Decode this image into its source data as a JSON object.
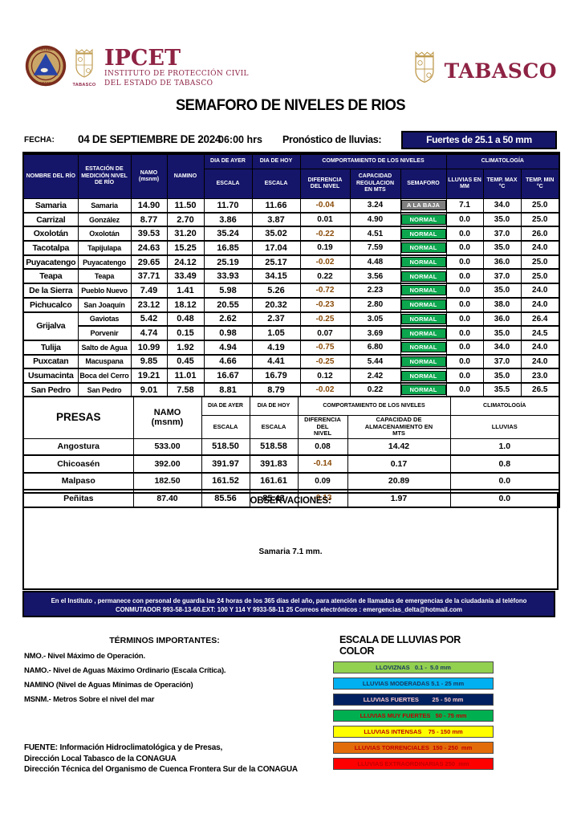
{
  "header": {
    "ipcet_title": "IPCET",
    "ipcet_sub1": "INSTITUTO DE PROTECCIÓN CIVIL",
    "ipcet_sub2": "DEL ESTADO DE TABASCO",
    "seal_label": "TABASCO",
    "tabasco_logo": "TABASCO",
    "title": "SEMAFORO DE NIVELES DE RIOS",
    "fecha_label": "FECHA:",
    "fecha_value": "04 DE SEPTIEMBRE DE 2024",
    "hora": "06:00 hrs",
    "pronostico_label": "Pronóstico de lluvias:",
    "pronostico_value": "Fuertes de 25.1 a 50 mm"
  },
  "colors": {
    "navy": "#151569",
    "maroon": "#8e2344",
    "gold": "#bf9b4f",
    "negative_value": "#8a4b08"
  },
  "semaforo_colors": {
    "NORMAL": "#0ca64e",
    "A LA BAJA": "#7f7f7f"
  },
  "rivers_table": {
    "headers": {
      "nombre": "NOMBRE DEL RÍO",
      "estacion": "ESTACIÓN DE\nMEDICIÓN NIVEL\nDE RÍO",
      "namo": "NAMO\n(msnm)",
      "namino": "NAMINO",
      "dia_ayer": "DIA DE AYER",
      "dia_hoy": "DIA DE HOY",
      "escala": "ESCALA",
      "comportamiento": "COMPORTAMIENTO DE LOS NIVELES",
      "diferencia": "DIFERENCIA\nDEL NIVEL",
      "capacidad": "CAPACIDAD\nREGULACION\nEN MTS",
      "semaforo": "SEMAFORO",
      "climatologia": "CLIMATOLOGÍA",
      "lluvias": "LLUVIAS EN\nMM",
      "temp_max": "TEMP. MAX\n°C",
      "temp_min": "TEMP.  MIN\n°C"
    },
    "rows": [
      {
        "rio": "Samaria",
        "estacion": "Samaria",
        "namo": "14.90",
        "namino": "11.50",
        "ayer": "11.70",
        "hoy": "11.66",
        "dif": "-0.04",
        "cap": "3.24",
        "semaforo": "A LA BAJA",
        "lluvia": "7.1",
        "tmax": "34.0",
        "tmin": "25.0"
      },
      {
        "rio": "Carrizal",
        "estacion": "González",
        "namo": "8.77",
        "namino": "2.70",
        "ayer": "3.86",
        "hoy": "3.87",
        "dif": "0.01",
        "cap": "4.90",
        "semaforo": "NORMAL",
        "lluvia": "0.0",
        "tmax": "35.0",
        "tmin": "25.0"
      },
      {
        "rio": "Oxolotán",
        "estacion": "Oxolotán",
        "namo": "39.53",
        "namino": "31.20",
        "ayer": "35.24",
        "hoy": "35.02",
        "dif": "-0.22",
        "cap": "4.51",
        "semaforo": "NORMAL",
        "lluvia": "0.0",
        "tmax": "37.0",
        "tmin": "26.0"
      },
      {
        "rio": "Tacotalpa",
        "estacion": "Tapijulapa",
        "namo": "24.63",
        "namino": "15.25",
        "ayer": "16.85",
        "hoy": "17.04",
        "dif": "0.19",
        "cap": "7.59",
        "semaforo": "NORMAL",
        "lluvia": "0.0",
        "tmax": "35.0",
        "tmin": "24.0"
      },
      {
        "rio": "Puyacatengo",
        "estacion": "Puyacatengo",
        "namo": "29.65",
        "namino": "24.12",
        "ayer": "25.19",
        "hoy": "25.17",
        "dif": "-0.02",
        "cap": "4.48",
        "semaforo": "NORMAL",
        "lluvia": "0.0",
        "tmax": "36.0",
        "tmin": "25.0"
      },
      {
        "rio": "Teapa",
        "estacion": "Teapa",
        "namo": "37.71",
        "namino": "33.49",
        "ayer": "33.93",
        "hoy": "34.15",
        "dif": "0.22",
        "cap": "3.56",
        "semaforo": "NORMAL",
        "lluvia": "0.0",
        "tmax": "37.0",
        "tmin": "25.0"
      },
      {
        "rio": "De la Sierra",
        "estacion": "Pueblo Nuevo",
        "namo": "7.49",
        "namino": "1.41",
        "ayer": "5.98",
        "hoy": "5.26",
        "dif": "-0.72",
        "cap": "2.23",
        "semaforo": "NORMAL",
        "lluvia": "0.0",
        "tmax": "35.0",
        "tmin": "24.0"
      },
      {
        "rio": "Pichucalco",
        "estacion": "San Joaquín",
        "namo": "23.12",
        "namino": "18.12",
        "ayer": "20.55",
        "hoy": "20.32",
        "dif": "-0.23",
        "cap": "2.80",
        "semaforo": "NORMAL",
        "lluvia": "0.0",
        "tmax": "38.0",
        "tmin": "24.0"
      },
      {
        "rio": "Grijalva",
        "rio_rowspan": 2,
        "estacion": "Gaviotas",
        "namo": "5.42",
        "namino": "0.48",
        "ayer": "2.62",
        "hoy": "2.37",
        "dif": "-0.25",
        "cap": "3.05",
        "semaforo": "NORMAL",
        "lluvia": "0.0",
        "tmax": "36.0",
        "tmin": "26.4"
      },
      {
        "rio": null,
        "estacion": "Porvenir",
        "namo": "4.74",
        "namino": "0.15",
        "ayer": "0.98",
        "hoy": "1.05",
        "dif": "0.07",
        "cap": "3.69",
        "semaforo": "NORMAL",
        "lluvia": "0.0",
        "tmax": "35.0",
        "tmin": "24.5"
      },
      {
        "rio": "Tulija",
        "estacion": "Salto de Agua",
        "namo": "10.99",
        "namino": "1.92",
        "ayer": "4.94",
        "hoy": "4.19",
        "dif": "-0.75",
        "cap": "6.80",
        "semaforo": "NORMAL",
        "lluvia": "0.0",
        "tmax": "34.0",
        "tmin": "24.0"
      },
      {
        "rio": "Puxcatan",
        "estacion": "Macuspana",
        "namo": "9.85",
        "namino": "0.45",
        "ayer": "4.66",
        "hoy": "4.41",
        "dif": "-0.25",
        "cap": "5.44",
        "semaforo": "NORMAL",
        "lluvia": "0.0",
        "tmax": "37.0",
        "tmin": "24.0"
      },
      {
        "rio": "Usumacinta",
        "estacion": "Boca del Cerro",
        "namo": "19.21",
        "namino": "11.01",
        "ayer": "16.67",
        "hoy": "16.79",
        "dif": "0.12",
        "cap": "2.42",
        "semaforo": "NORMAL",
        "lluvia": "0.0",
        "tmax": "35.0",
        "tmin": "23.0"
      },
      {
        "rio": "San Pedro",
        "estacion": "San Pedro",
        "namo": "9.01",
        "namino": "7.58",
        "ayer": "8.81",
        "hoy": "8.79",
        "dif": "-0.02",
        "cap": "0.22",
        "semaforo": "NORMAL",
        "lluvia": "0.0",
        "tmax": "35.5",
        "tmin": "26.5"
      }
    ]
  },
  "presas_table": {
    "headers": {
      "presas": "PRESAS",
      "namo": "NAMO\n(msnm)",
      "dia_ayer": "DIA DE AYER",
      "dia_hoy": "DIA DE HOY",
      "escala": "ESCALA",
      "comportamiento": "COMPORTAMIENTO DE LOS NIVELES",
      "diferencia": "DIFERENCIA DEL\nNIVEL",
      "capacidad": "CAPACIDAD DE ALMACENAMIENTO EN\nMTS",
      "climatologia": "CLIMATOLOGÍA",
      "lluvias": "LLUVIAS"
    },
    "rows": [
      {
        "presa": "Angostura",
        "namo": "533.00",
        "ayer": "518.50",
        "hoy": "518.58",
        "dif": "0.08",
        "cap": "14.42",
        "lluvia": "1.0"
      },
      {
        "presa": "Chicoasén",
        "namo": "392.00",
        "ayer": "391.97",
        "hoy": "391.83",
        "dif": "-0.14",
        "cap": "0.17",
        "lluvia": "0.8"
      },
      {
        "presa": "Malpaso",
        "namo": "182.50",
        "ayer": "161.52",
        "hoy": "161.61",
        "dif": "0.09",
        "cap": "20.89",
        "lluvia": "0.0"
      },
      {
        "presa": "Peñitas",
        "namo": "87.40",
        "ayer": "85.56",
        "hoy": "85.43",
        "dif": "-0.13",
        "cap": "1.97",
        "lluvia": "0.0"
      }
    ]
  },
  "observaciones": {
    "title": "OBSERVACIONES:",
    "note": "Samaria 7.1 mm."
  },
  "footer_banner": {
    "line1": "En el Instituto , permanece con personal de guardia las 24 horas de los 365 días del año, para atención de llamadas de emergencias de la ciudadanía al teléfono",
    "line2": "CONMUTADOR  993-58-13-60.EXT: 100 Y 114  Y 9933-58-11 25   Correos electrónicos : emergencias_delta@hotmail.com"
  },
  "terminos": {
    "title": "TÉRMINOS IMPORTANTES:",
    "items": [
      "NMO.- Nivel Máximo de Operación.",
      "NAMO.- Nivel de Aguas Máximo Ordinario (Escala Crítica).",
      "NAMINO (Nivel de Aguas Mínimas de Operación)",
      "MSNM.- Metros Sobre el nivel del mar"
    ]
  },
  "escala_lluvias": {
    "title": "ESCALA DE LLUVIAS POR COLOR",
    "items": [
      {
        "label": "LLOVIZNAS   0.1 -  5.0 mm",
        "bg": "#92d050",
        "fg": "#17375e"
      },
      {
        "label": "LLUVIAS MODERADAS 5.1 - 25 mm",
        "bg": "#00b0f0",
        "fg": "#17375e"
      },
      {
        "label": "LLUVIAS FUERTES        25 - 50 mm",
        "bg": "#002060",
        "fg": "#ffcccc"
      },
      {
        "label": "LLUVIAS MUY FUERTES   50 - 75 mm",
        "bg": "#00b050",
        "fg": "#c00000"
      },
      {
        "label": "LLUVIAS INTENSAS    75 - 150 mm",
        "bg": "#ffff00",
        "fg": "#c00000"
      },
      {
        "label": "LLUVIAS TORRENCIALES  150 - 250  mm",
        "bg": "#e36c0a",
        "fg": "#c00000"
      },
      {
        "label": "LLUVIAS EXTRAORDINARIAS 250  mm",
        "bg": "#ff0000",
        "fg": "#c00000"
      }
    ]
  },
  "fuente": {
    "line1": "FUENTE: Información Hidroclimatológica y de Presas,",
    "line2": "Dirección Local Tabasco de la CONAGUA",
    "line3": "Dirección Técnica del Organismo de Cuenca Frontera Sur de la CONAGUA"
  }
}
